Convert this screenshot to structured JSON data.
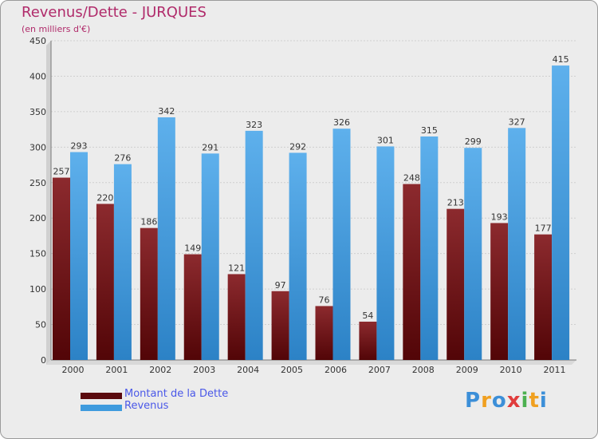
{
  "colors": {
    "dette": "#7a0f14",
    "revenus": "#3f9bde",
    "title": "#b02a6a",
    "legend_text": "#4a58e8",
    "background": "#ececec"
  },
  "chart_data": {
    "type": "bar",
    "title": "Revenus/Dette - JURQUES",
    "subtitle": "(en milliers d'€)",
    "xlabel": "",
    "ylabel": "",
    "ylim": [
      0,
      450
    ],
    "yticks": [
      0,
      50,
      100,
      150,
      200,
      250,
      300,
      350,
      400,
      450
    ],
    "grid": true,
    "legend_position": "bottom-left",
    "categories": [
      "2000",
      "2001",
      "2002",
      "2003",
      "2004",
      "2005",
      "2006",
      "2007",
      "2008",
      "2009",
      "2010",
      "2011"
    ],
    "series": [
      {
        "name": "Montant de la Dette",
        "values": [
          257,
          220,
          186,
          149,
          121,
          97,
          76,
          54,
          248,
          213,
          193,
          177
        ]
      },
      {
        "name": "Revenus",
        "values": [
          293,
          276,
          342,
          291,
          323,
          292,
          326,
          301,
          315,
          299,
          327,
          415
        ]
      }
    ]
  },
  "logo": {
    "letters": [
      "P",
      "r",
      "o",
      "x",
      "i",
      "t",
      "i"
    ]
  }
}
